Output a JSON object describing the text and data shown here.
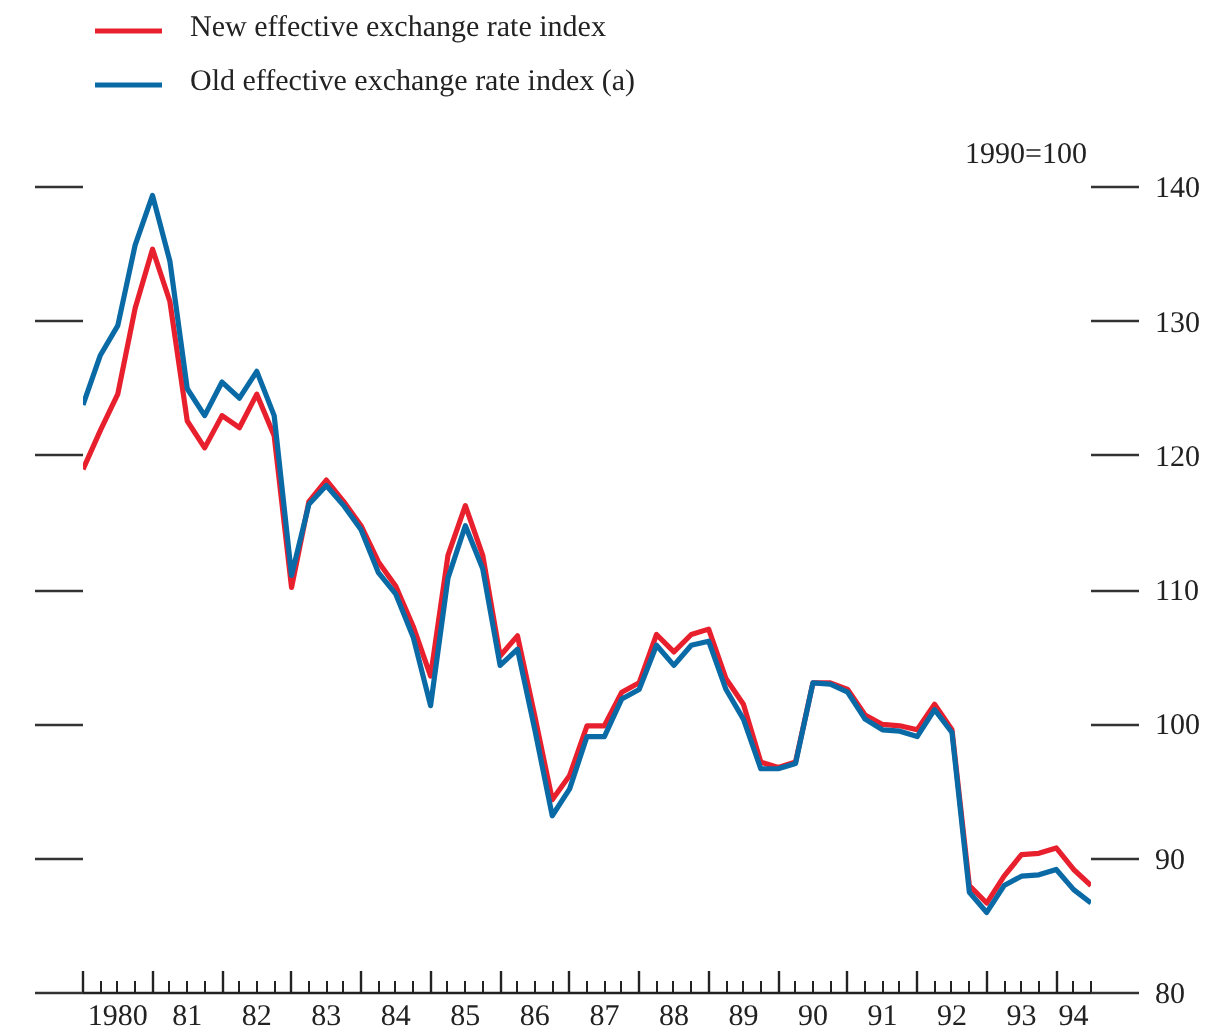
{
  "chart_data": {
    "type": "line",
    "categories": [
      null,
      null,
      "1980",
      null,
      null,
      null,
      "81",
      null,
      null,
      null,
      "82",
      null,
      null,
      null,
      "83",
      null,
      null,
      null,
      "84",
      null,
      null,
      null,
      "85",
      null,
      null,
      null,
      "86",
      null,
      null,
      null,
      "87",
      null,
      null,
      null,
      "88",
      null,
      null,
      null,
      "89",
      null,
      null,
      null,
      "90",
      null,
      null,
      null,
      "91",
      null,
      null,
      null,
      "92",
      null,
      null,
      null,
      "93",
      null,
      null,
      "94",
      null
    ],
    "series": [
      {
        "name": "New effective exchange rate index",
        "color": "#e8202e",
        "values": [
          119.0,
          121.9,
          124.6,
          131.0,
          135.4,
          131.5,
          122.6,
          120.6,
          123.0,
          122.1,
          124.6,
          121.5,
          110.2,
          116.6,
          118.2,
          116.6,
          114.8,
          112.1,
          110.3,
          107.3,
          103.6,
          112.6,
          116.3,
          112.6,
          105.1,
          106.6,
          100.6,
          94.4,
          96.2,
          99.9,
          99.9,
          102.4,
          103.1,
          106.7,
          105.4,
          106.7,
          107.1,
          103.4,
          101.5,
          97.2,
          96.8,
          97.2,
          103.1,
          103.1,
          102.6,
          100.7,
          100.0,
          99.9,
          99.6,
          101.5,
          99.6,
          88.0,
          86.7,
          88.7,
          90.3,
          90.4,
          90.8,
          89.2,
          88.0
        ]
      },
      {
        "name": "Old effective exchange rate index (a)",
        "color": "#0a6aa6",
        "values": [
          123.8,
          127.5,
          129.7,
          135.7,
          139.4,
          134.5,
          125.0,
          123.0,
          125.5,
          124.3,
          126.3,
          123.0,
          111.1,
          116.4,
          117.8,
          116.3,
          114.5,
          111.3,
          109.7,
          106.5,
          101.4,
          110.9,
          114.8,
          111.6,
          104.4,
          105.6,
          99.6,
          93.2,
          95.2,
          99.1,
          99.1,
          101.9,
          102.6,
          105.9,
          104.4,
          105.9,
          106.2,
          102.6,
          100.4,
          96.7,
          96.7,
          97.1,
          103.1,
          103.0,
          102.4,
          100.4,
          99.6,
          99.5,
          99.1,
          101.1,
          99.4,
          87.5,
          86.0,
          88.0,
          88.7,
          88.8,
          89.2,
          87.7,
          86.7
        ]
      }
    ],
    "ylim": [
      80,
      140
    ],
    "yticks": [
      80,
      90,
      100,
      110,
      120,
      130,
      140
    ],
    "annotations": [
      "1990=100"
    ],
    "legend": "top left",
    "line_style": "solid"
  }
}
